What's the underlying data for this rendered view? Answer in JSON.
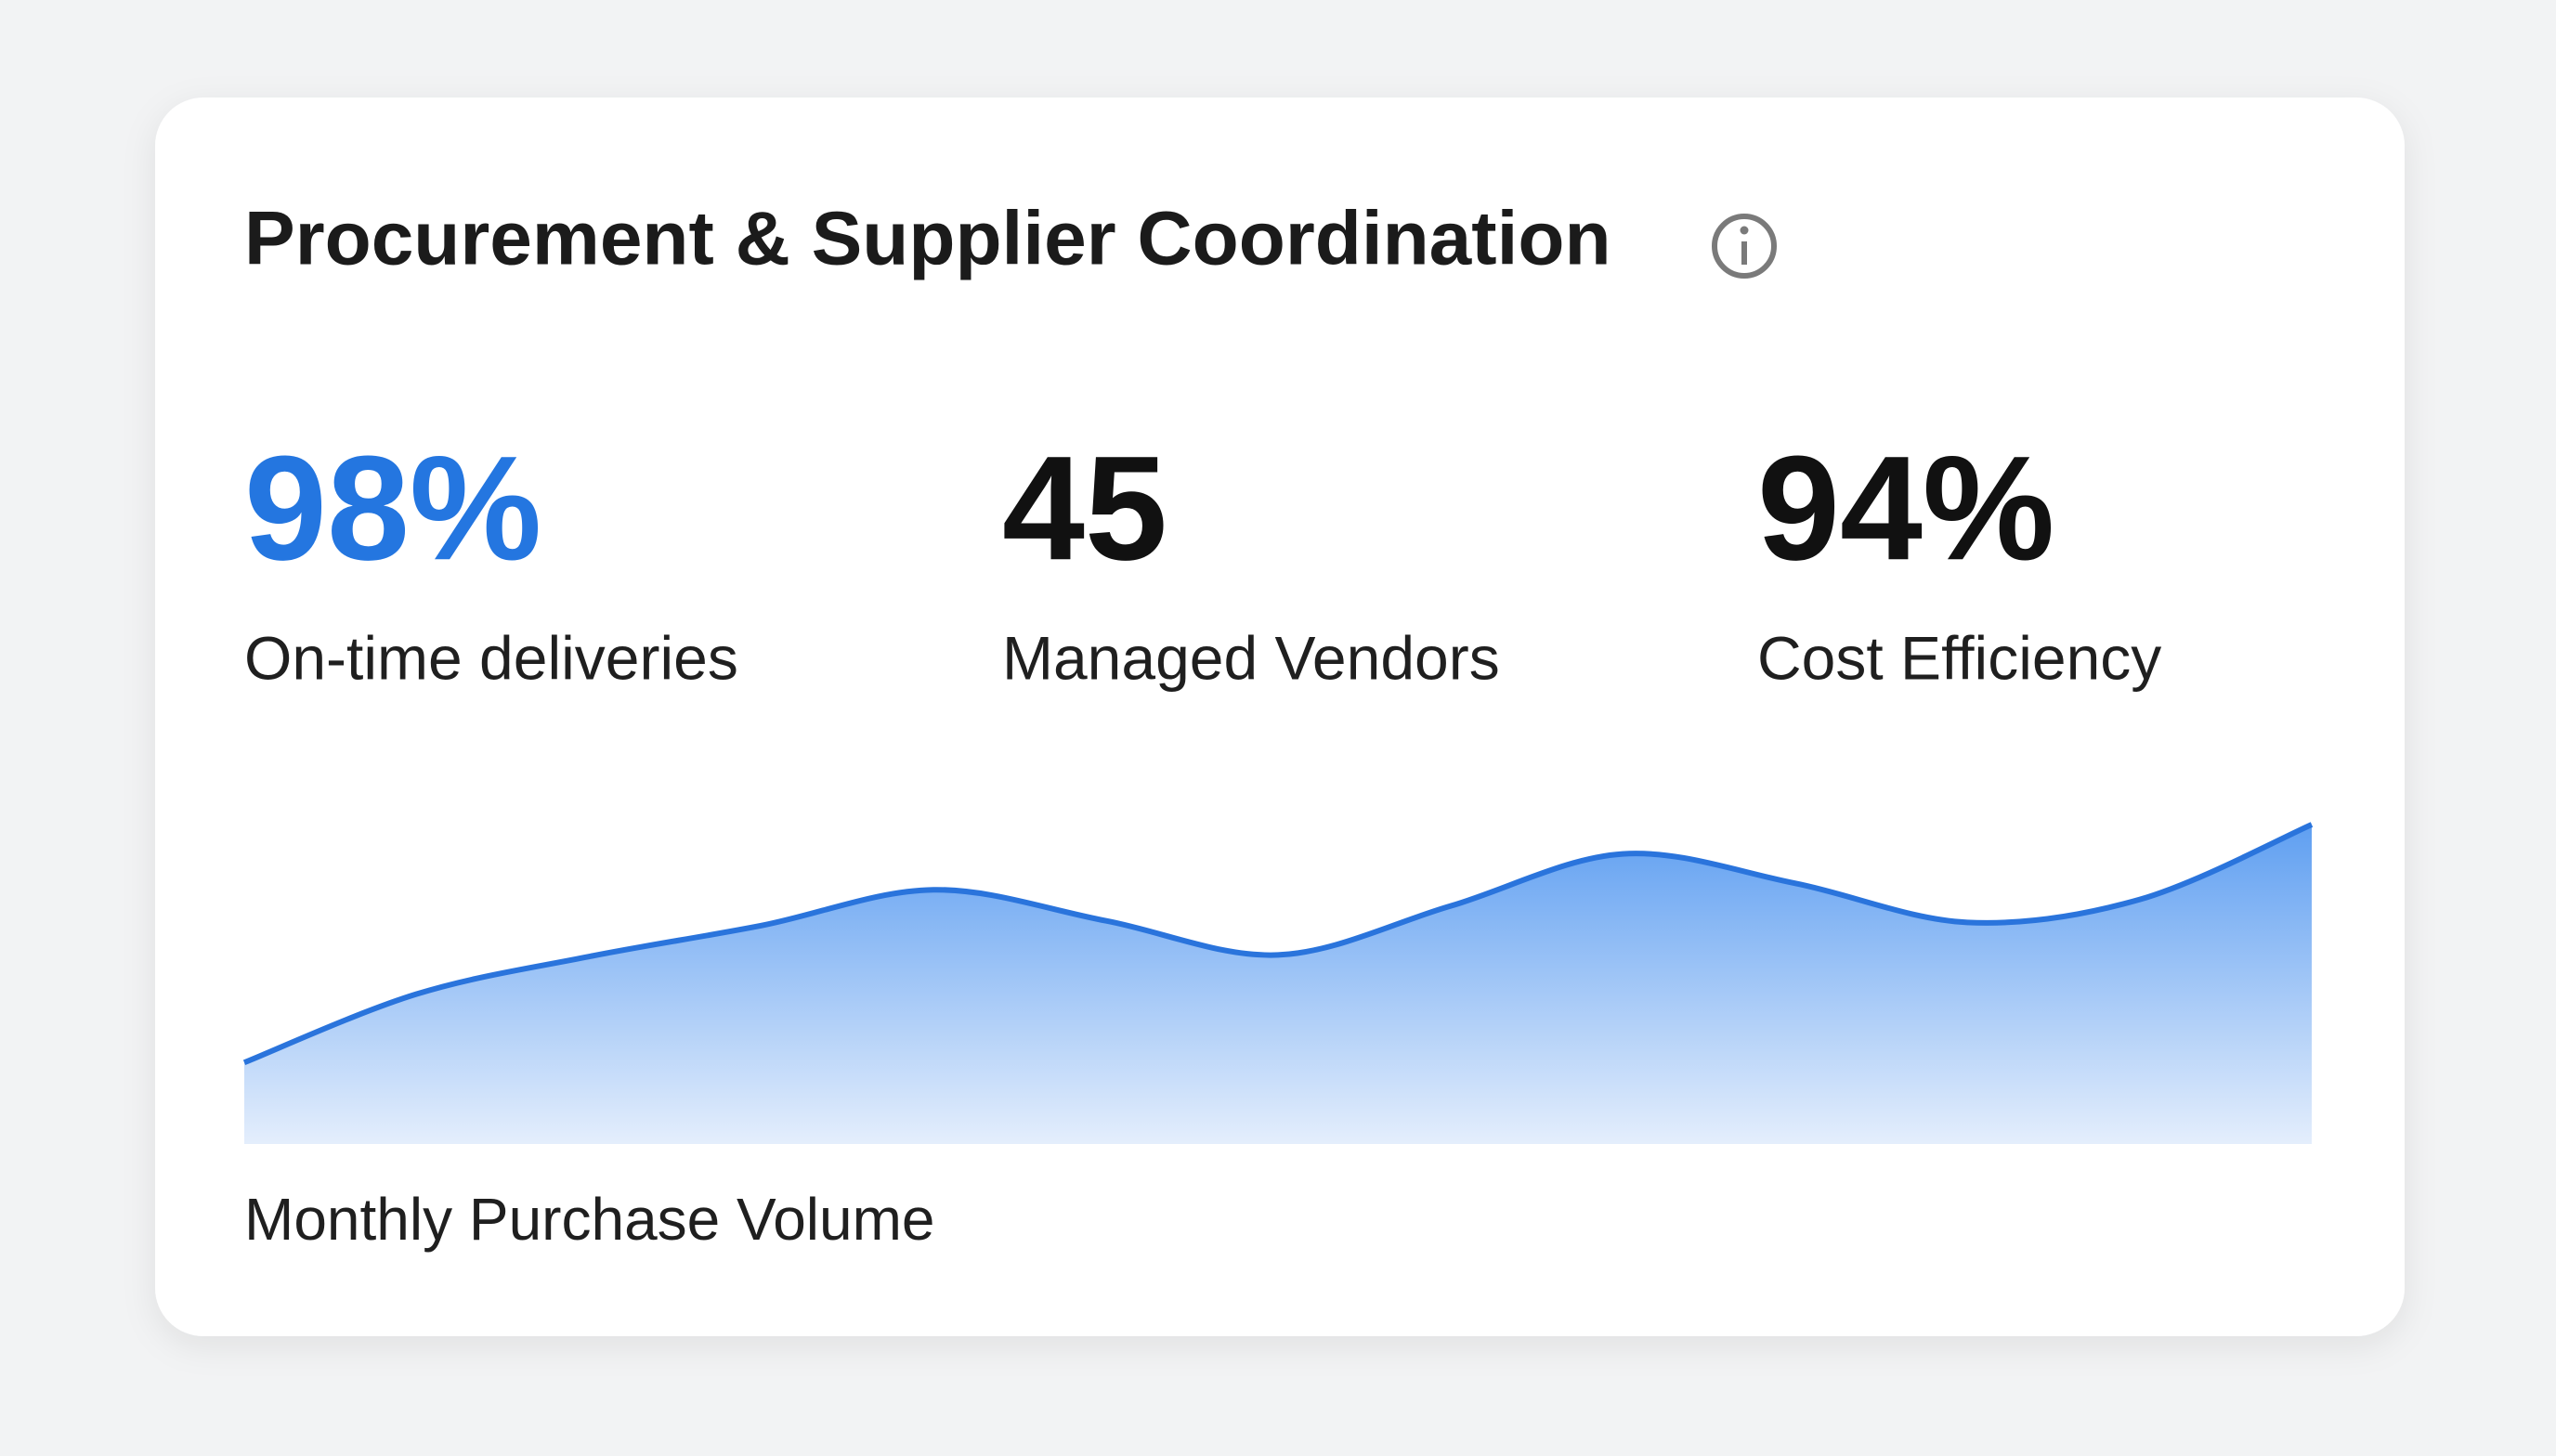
{
  "card": {
    "title": "Procurement & Supplier Coordination",
    "stats": [
      {
        "value": "98%",
        "label": "On-time deliveries"
      },
      {
        "value": "45",
        "label": "Managed Vendors"
      },
      {
        "value": "94%",
        "label": "Cost Efficiency"
      }
    ],
    "chart": {
      "type": "area",
      "label": "Monthly Purchase Volume",
      "values": [
        50,
        92,
        115,
        134,
        156,
        137,
        116,
        146,
        178,
        160,
        136,
        150,
        196
      ],
      "ylim": [
        0,
        200
      ],
      "color": "#2a74dc"
    }
  }
}
